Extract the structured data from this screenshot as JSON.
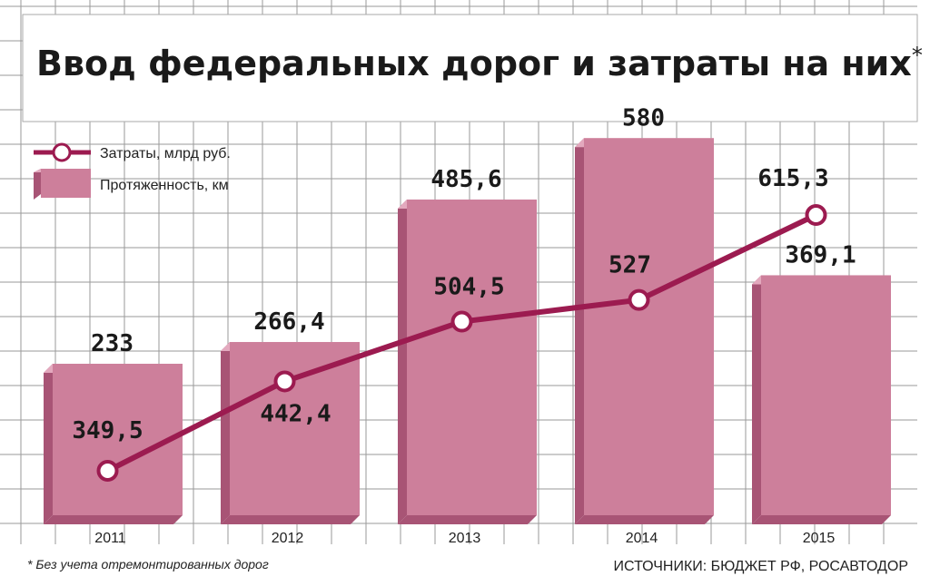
{
  "title": "Ввод федеральных дорог и затраты на них",
  "title_mark": "*",
  "footnote": "* Без учета отремонтированных дорог",
  "source": "ИСТОЧНИКИ: БЮДЖЕТ РФ, РОСАВТОДОР",
  "colors": {
    "bar_front": "#cd7f9b",
    "bar_side": "#a85475",
    "bar_top": "#e3a9be",
    "line": "#9c1b50",
    "grid": "#9a9a9a",
    "background": "#ffffff"
  },
  "chart_data": {
    "type": "bar",
    "categories": [
      "2011",
      "2012",
      "2013",
      "2014",
      "2015"
    ],
    "series": [
      {
        "name": "Протяженность, км",
        "kind": "bar",
        "values": [
          233,
          266.4,
          485.6,
          580,
          369.1
        ],
        "labels": [
          "233",
          "266,4",
          "485,6",
          "580",
          "369,1"
        ]
      },
      {
        "name": "Затраты, млрд руб.",
        "kind": "line",
        "values": [
          349.5,
          442.4,
          504.5,
          527,
          615.3
        ],
        "labels": [
          "349,5",
          "442,4",
          "504,5",
          "527",
          "615,3"
        ]
      }
    ],
    "legend": "top-left"
  }
}
